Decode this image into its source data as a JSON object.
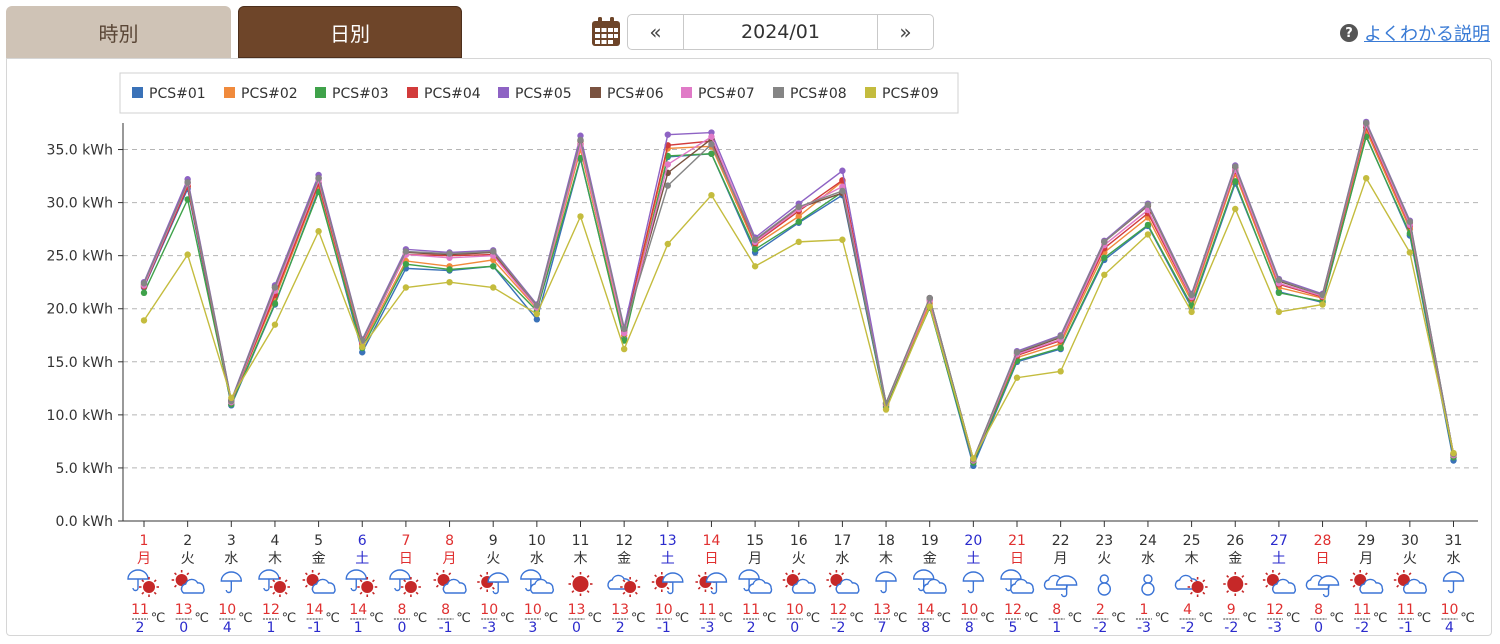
{
  "tabs": {
    "hourly": "時別",
    "daily": "日別"
  },
  "date_nav": {
    "prev": "«",
    "current": "2024/01",
    "next": "»"
  },
  "help": {
    "icon": "?",
    "label": "よくわかる説明"
  },
  "colors": {
    "tab_active": "#6e4529",
    "tab_inactive": "#cfc3b6",
    "sunday_holiday": "#e03030",
    "saturday": "#2a2acc",
    "weekday": "#333333",
    "max_temp": "#e03030",
    "min_temp": "#2a2acc"
  },
  "chart_data": {
    "type": "line",
    "ylim": [
      0,
      37.5
    ],
    "yticks": [
      "0.0 kWh",
      "5.0 kWh",
      "10.0 kWh",
      "15.0 kWh",
      "20.0 kWh",
      "25.0 kWh",
      "30.0 kWh",
      "35.0 kWh"
    ],
    "grid": true,
    "legend_position": "top-left",
    "categories": [
      "1",
      "2",
      "3",
      "4",
      "5",
      "6",
      "7",
      "8",
      "9",
      "10",
      "11",
      "12",
      "13",
      "14",
      "15",
      "16",
      "17",
      "18",
      "19",
      "20",
      "21",
      "22",
      "23",
      "24",
      "25",
      "26",
      "27",
      "28",
      "29",
      "30",
      "31"
    ],
    "weekdays": [
      "月",
      "火",
      "水",
      "木",
      "金",
      "土",
      "日",
      "月",
      "火",
      "水",
      "木",
      "金",
      "土",
      "日",
      "月",
      "火",
      "水",
      "木",
      "金",
      "土",
      "日",
      "月",
      "火",
      "水",
      "木",
      "金",
      "土",
      "日",
      "月",
      "火",
      "水"
    ],
    "day_types": [
      "holiday",
      "weekday",
      "weekday",
      "weekday",
      "weekday",
      "saturday",
      "holiday",
      "holiday",
      "weekday",
      "weekday",
      "weekday",
      "weekday",
      "saturday",
      "holiday",
      "weekday",
      "weekday",
      "weekday",
      "weekday",
      "weekday",
      "saturday",
      "holiday",
      "weekday",
      "weekday",
      "weekday",
      "weekday",
      "weekday",
      "saturday",
      "holiday",
      "weekday",
      "weekday",
      "weekday"
    ],
    "weather_icons": [
      "rain-sun-icon",
      "sun-cloud-icon",
      "rain-icon",
      "rain-sun-icon",
      "sun-cloud-icon",
      "rain-sun-icon",
      "rain-sun-icon",
      "sun-cloud-icon",
      "sun-rain-icon",
      "rain-cloud-icon",
      "sun-icon",
      "cloud-sun-icon",
      "sun-rain-icon",
      "sun-rain-icon",
      "rain-cloud-icon",
      "sun-cloud-icon",
      "sun-cloud-icon",
      "rain-icon",
      "rain-cloud-icon",
      "rain-icon",
      "rain-cloud-icon",
      "cloud-rain-icon",
      "snow-icon",
      "snow-icon",
      "cloud-sun-icon",
      "sun-icon",
      "sun-cloud-icon",
      "cloud-rain-icon",
      "sun-cloud-icon",
      "sun-cloud-icon",
      "rain-icon"
    ],
    "temp_max": [
      "11",
      "13",
      "10",
      "12",
      "14",
      "14",
      "8",
      "8",
      "10",
      "10",
      "13",
      "13",
      "10",
      "11",
      "11",
      "10",
      "12",
      "13",
      "14",
      "10",
      "12",
      "8",
      "2",
      "1",
      "4",
      "9",
      "12",
      "8",
      "11",
      "11",
      "10"
    ],
    "temp_min": [
      "2",
      "0",
      "4",
      "1",
      "-1",
      "1",
      "0",
      "-1",
      "-3",
      "3",
      "0",
      "2",
      "-1",
      "-3",
      "2",
      "0",
      "-2",
      "7",
      "8",
      "8",
      "5",
      "1",
      "-2",
      "-3",
      "-2",
      "-2",
      "-3",
      "0",
      "-2",
      "-1",
      "4"
    ],
    "temp_unit": "℃",
    "series": [
      {
        "name": "PCS#01",
        "color": "#3a72b8",
        "values": [
          22.0,
          31.3,
          10.9,
          20.4,
          31.2,
          15.9,
          23.8,
          23.6,
          24.0,
          19.0,
          34.1,
          17.2,
          34.3,
          34.6,
          25.3,
          28.1,
          30.7,
          10.7,
          20.2,
          5.2,
          15.0,
          16.2,
          24.6,
          27.8,
          20.1,
          31.8,
          21.6,
          20.6,
          36.3,
          26.9,
          5.7
        ]
      },
      {
        "name": "PCS#02",
        "color": "#f08a3c",
        "values": [
          22.2,
          31.6,
          11.3,
          21.0,
          31.6,
          16.6,
          24.5,
          24.0,
          24.6,
          20.0,
          35.0,
          17.5,
          35.1,
          35.3,
          26.0,
          28.7,
          32.0,
          10.9,
          20.5,
          5.6,
          15.4,
          16.7,
          25.3,
          28.6,
          20.7,
          32.7,
          22.0,
          21.0,
          36.8,
          27.5,
          6.1
        ]
      },
      {
        "name": "PCS#03",
        "color": "#3fa24a",
        "values": [
          21.5,
          30.3,
          11.0,
          20.5,
          31.0,
          16.3,
          24.2,
          23.7,
          24.0,
          19.8,
          34.2,
          17.0,
          34.4,
          34.6,
          25.6,
          28.2,
          31.0,
          10.8,
          20.1,
          5.5,
          15.1,
          16.3,
          24.8,
          27.9,
          20.3,
          32.0,
          21.5,
          20.7,
          36.2,
          27.1,
          6.0
        ]
      },
      {
        "name": "PCS#04",
        "color": "#d23b3b",
        "values": [
          22.1,
          31.5,
          11.2,
          21.3,
          31.8,
          16.8,
          25.1,
          25.0,
          25.1,
          20.2,
          35.5,
          17.8,
          35.4,
          35.8,
          26.2,
          29.2,
          32.1,
          11.0,
          20.8,
          5.7,
          15.6,
          17.0,
          25.7,
          29.0,
          21.0,
          33.0,
          22.3,
          21.1,
          37.1,
          27.8,
          6.2
        ]
      },
      {
        "name": "PCS#05",
        "color": "#8e63c4",
        "values": [
          22.5,
          32.2,
          11.4,
          22.2,
          32.6,
          17.1,
          25.6,
          25.3,
          25.5,
          20.4,
          36.3,
          18.2,
          36.4,
          36.6,
          26.7,
          29.9,
          33.0,
          11.1,
          21.0,
          5.8,
          16.0,
          17.5,
          26.4,
          29.9,
          21.4,
          33.5,
          22.8,
          21.4,
          37.6,
          28.3,
          6.3
        ]
      },
      {
        "name": "PCS#06",
        "color": "#7a5240",
        "values": [
          22.3,
          31.9,
          11.3,
          22.0,
          32.3,
          17.0,
          25.3,
          25.1,
          25.3,
          20.3,
          35.8,
          18.0,
          32.8,
          36.0,
          26.4,
          29.5,
          30.9,
          11.1,
          21.0,
          5.8,
          15.8,
          17.3,
          26.3,
          29.7,
          21.3,
          33.3,
          22.6,
          21.3,
          37.4,
          28.1,
          6.3
        ]
      },
      {
        "name": "PCS#07",
        "color": "#e07ac7",
        "values": [
          22.2,
          31.8,
          11.2,
          21.7,
          32.1,
          16.9,
          25.1,
          24.8,
          25.0,
          20.1,
          35.4,
          17.7,
          33.6,
          36.2,
          26.3,
          29.4,
          31.5,
          11.0,
          20.8,
          5.7,
          15.7,
          17.1,
          26.0,
          29.3,
          21.1,
          33.1,
          22.4,
          21.2,
          37.3,
          27.9,
          6.2
        ]
      },
      {
        "name": "PCS#08",
        "color": "#858585",
        "values": [
          22.4,
          31.9,
          11.3,
          22.0,
          32.3,
          17.0,
          25.4,
          25.2,
          25.4,
          20.3,
          35.9,
          18.1,
          31.6,
          35.5,
          26.5,
          29.6,
          31.1,
          11.1,
          21.0,
          5.8,
          15.9,
          17.4,
          26.3,
          29.8,
          21.3,
          33.4,
          22.7,
          21.3,
          37.5,
          28.2,
          6.3
        ]
      },
      {
        "name": "PCS#09",
        "color": "#c4bc3e",
        "values": [
          18.9,
          25.1,
          11.6,
          18.5,
          27.3,
          16.4,
          22.0,
          22.5,
          22.0,
          19.5,
          28.7,
          16.2,
          26.1,
          30.7,
          24.0,
          26.3,
          26.5,
          10.5,
          20.2,
          5.9,
          13.5,
          14.1,
          23.2,
          27.0,
          19.7,
          29.4,
          19.7,
          20.4,
          32.3,
          25.3,
          6.4
        ]
      }
    ]
  }
}
